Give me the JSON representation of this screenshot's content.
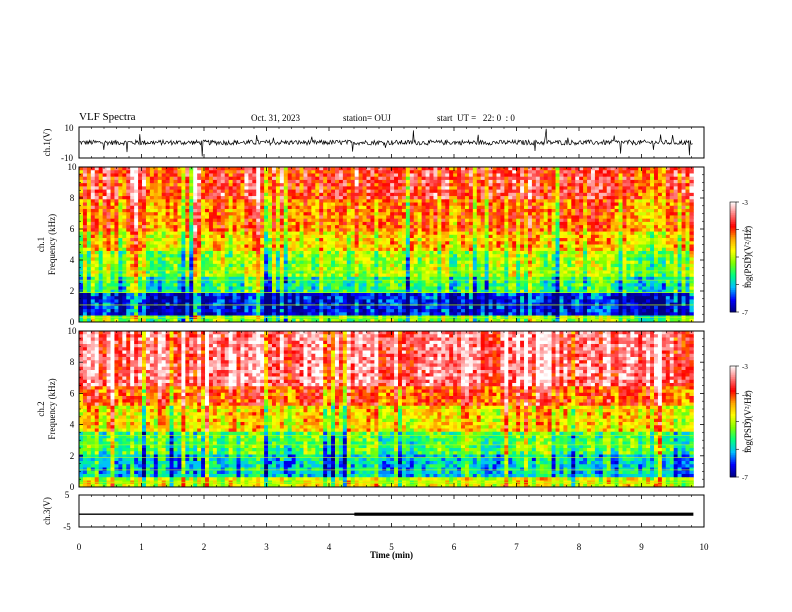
{
  "header": {
    "title": "VLF Spectra",
    "date": "Oct. 31, 2023",
    "station": "station= OUJ",
    "start": "start  UT =   22: 0  : 0"
  },
  "chart_data": [
    {
      "type": "line",
      "panel": "ch1-waveform",
      "ylabel": "ch.1(V)",
      "ylim": [
        -10,
        10
      ],
      "yticks": [
        "10",
        "-10"
      ],
      "xlim": [
        0,
        10
      ],
      "description_values": {
        "baseline": 0,
        "typical_range": [
          -2,
          2
        ],
        "spike_max": 8,
        "spike_min": -10
      }
    },
    {
      "type": "heatmap",
      "panel": "ch1-spectrogram",
      "ylabel": "ch.1 Frequency (kHz)",
      "ylim": [
        0,
        10
      ],
      "yticks": [
        "0",
        "2",
        "4",
        "6",
        "8",
        "10"
      ],
      "xlim": [
        0,
        9.83
      ],
      "colorbar": {
        "label": "log(PSD)(V²/Hz)",
        "range": [
          -7,
          -3
        ],
        "ticks": [
          "-3",
          "-4",
          "-5",
          "-6",
          "-7"
        ]
      },
      "bands": [
        {
          "f": [
            0,
            0.5
          ],
          "level": -5.2
        },
        {
          "f": [
            0.5,
            1.9
          ],
          "level": -6.6
        },
        {
          "f": [
            1.9,
            2.9
          ],
          "level": -5.6
        },
        {
          "f": [
            2.9,
            4.6
          ],
          "level": -5.1
        },
        {
          "f": [
            4.6,
            5.8
          ],
          "level": -4.6
        },
        {
          "f": [
            5.8,
            8.0
          ],
          "level": -4.2
        },
        {
          "f": [
            8.0,
            10.0
          ],
          "level": -3.8
        }
      ]
    },
    {
      "type": "heatmap",
      "panel": "ch2-spectrogram",
      "ylabel": "ch.2 Frequency (kHz)",
      "ylim": [
        0,
        10
      ],
      "yticks": [
        "0",
        "2",
        "4",
        "6",
        "8",
        "10"
      ],
      "xlim": [
        0,
        9.83
      ],
      "colorbar": {
        "label": "log(PSD)(V²/Hz)",
        "range": [
          -7,
          -3
        ],
        "ticks": [
          "-3",
          "-4",
          "-5",
          "-6",
          "-7"
        ]
      },
      "bands": [
        {
          "f": [
            0,
            0.6
          ],
          "level": -4.8
        },
        {
          "f": [
            0.6,
            2.0
          ],
          "level": -5.9
        },
        {
          "f": [
            2.0,
            3.6
          ],
          "level": -5.4
        },
        {
          "f": [
            3.6,
            5.2
          ],
          "level": -4.6
        },
        {
          "f": [
            5.2,
            6.5
          ],
          "level": -4.0
        },
        {
          "f": [
            6.5,
            10.0
          ],
          "level": -3.4
        }
      ]
    },
    {
      "type": "line",
      "panel": "ch3-level",
      "ylabel": "ch.3(V)",
      "ylim": [
        -5,
        5
      ],
      "yticks": [
        "5",
        "0",
        "-5"
      ],
      "xlim": [
        0,
        10
      ],
      "x": [
        0,
        4.5,
        4.55,
        9.83
      ],
      "y": [
        -1,
        -1,
        -1,
        -1
      ],
      "thickness_change_at": 4.55
    }
  ],
  "xaxis": {
    "label": "Time  (min)",
    "ticks": [
      "0",
      "1",
      "2",
      "3",
      "4",
      "5",
      "6",
      "7",
      "8",
      "9",
      "10"
    ],
    "range": [
      0,
      10
    ]
  },
  "colors": {
    "scale": [
      "#000080",
      "#0000ff",
      "#00bfff",
      "#00ff80",
      "#80ff00",
      "#ffff00",
      "#ffa500",
      "#ff0000",
      "#ff8080",
      "#ffffff"
    ]
  }
}
